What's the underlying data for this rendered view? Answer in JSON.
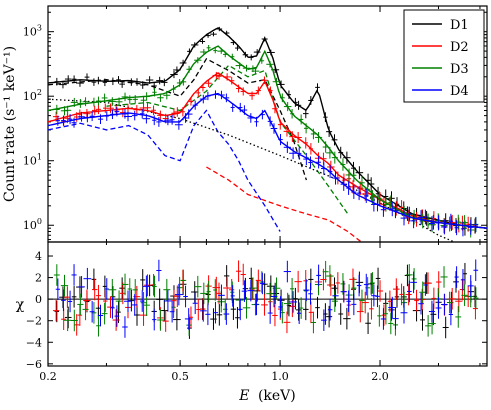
{
  "chart_data": {
    "type": "line",
    "xlabel_var": "E",
    "xlabel_unit": "(keV)",
    "ylabel_top": "Count rate (s⁻¹ keV⁻¹)",
    "ylabel_bottom": "χ",
    "x_scale": "log",
    "xlim": [
      0.2,
      4.2
    ],
    "x_ticks": [
      {
        "value": 0.2,
        "label": "0.2"
      },
      {
        "value": 0.5,
        "label": "0.5"
      },
      {
        "value": 1.0,
        "label": "1.0"
      },
      {
        "value": 2.0,
        "label": "2.0"
      }
    ],
    "top_panel": {
      "y_scale": "log",
      "ylim": [
        0.55,
        2500
      ],
      "y_ticks": [
        {
          "value": 1,
          "label_base": "10",
          "label_exp": "0"
        },
        {
          "value": 10,
          "label_base": "10",
          "label_exp": "1"
        },
        {
          "value": 100,
          "label_base": "10",
          "label_exp": "2"
        },
        {
          "value": 1000,
          "label_base": "10",
          "label_exp": "3"
        }
      ]
    },
    "bottom_panel": {
      "ylim": [
        -6.2,
        5.3
      ],
      "y_ticks": [
        {
          "value": 4,
          "label": "4"
        },
        {
          "value": 2,
          "label": "2"
        },
        {
          "value": 0,
          "label": "0"
        },
        {
          "value": -2,
          "label": "−2"
        },
        {
          "value": -4,
          "label": "−4"
        },
        {
          "value": -6,
          "label": "−6"
        }
      ]
    },
    "x": [
      0.2,
      0.25,
      0.3,
      0.35,
      0.4,
      0.45,
      0.5,
      0.55,
      0.6,
      0.65,
      0.7,
      0.75,
      0.8,
      0.85,
      0.9,
      0.95,
      1.0,
      1.1,
      1.2,
      1.3,
      1.4,
      1.5,
      1.7,
      2.0,
      2.5,
      3.0,
      3.5,
      4.2
    ],
    "series": [
      {
        "name": "D1",
        "color": "#000000",
        "values": [
          160,
          180,
          170,
          175,
          160,
          170,
          260,
          600,
          900,
          1150,
          850,
          600,
          400,
          420,
          800,
          400,
          150,
          80,
          60,
          130,
          30,
          15,
          7,
          3,
          1.5,
          1.2,
          1.0,
          0.9
        ]
      },
      {
        "name": "D2",
        "color": "#ff0000",
        "values": [
          40,
          55,
          60,
          65,
          60,
          50,
          55,
          110,
          170,
          230,
          180,
          140,
          110,
          110,
          170,
          90,
          40,
          25,
          18,
          12,
          9,
          6,
          4,
          2.5,
          1.4,
          1.1,
          1.0,
          0.9
        ]
      },
      {
        "name": "D3",
        "color": "#008000",
        "values": [
          60,
          75,
          85,
          95,
          100,
          110,
          150,
          320,
          480,
          600,
          430,
          330,
          260,
          280,
          500,
          260,
          100,
          50,
          35,
          25,
          16,
          10,
          5,
          2.5,
          1.3,
          1.1,
          1.0,
          0.9
        ]
      },
      {
        "name": "D4",
        "color": "#0000ff",
        "values": [
          35,
          45,
          50,
          55,
          50,
          40,
          40,
          70,
          100,
          110,
          85,
          65,
          50,
          45,
          60,
          35,
          20,
          14,
          11,
          9,
          7,
          5,
          3,
          2,
          1.3,
          1.1,
          1.0,
          0.9
        ]
      }
    ],
    "dashed_model_components": [
      {
        "color": "#000000",
        "x": [
          0.2,
          0.3,
          0.4,
          0.5,
          0.55,
          0.6,
          0.7,
          0.8,
          0.9,
          1.0,
          1.1,
          1.2
        ],
        "values": [
          150,
          180,
          150,
          100,
          180,
          380,
          250,
          160,
          180,
          60,
          20,
          5
        ]
      },
      {
        "color": "#ff0000",
        "x": [
          0.6,
          0.7,
          0.8,
          1.0,
          1.2,
          1.4,
          1.6,
          1.8
        ],
        "values": [
          8,
          5,
          3,
          2,
          1.5,
          1.2,
          0.8,
          0.5
        ]
      },
      {
        "color": "#008000",
        "x": [
          0.3,
          0.4,
          0.5,
          0.6,
          0.7,
          0.8,
          0.9,
          1.0,
          1.2,
          1.4,
          1.6
        ],
        "values": [
          70,
          80,
          60,
          120,
          300,
          200,
          250,
          40,
          12,
          4,
          1.5
        ]
      },
      {
        "color": "#0000ff",
        "x": [
          0.2,
          0.25,
          0.3,
          0.35,
          0.4,
          0.45,
          0.5,
          0.55,
          0.6,
          0.65,
          0.7,
          0.75,
          0.8,
          0.9,
          1.0
        ],
        "values": [
          30,
          38,
          30,
          35,
          25,
          12,
          10,
          35,
          60,
          28,
          18,
          10,
          5,
          2,
          0.8
        ]
      }
    ],
    "dotted_model_component": {
      "color": "#000000",
      "x": [
        0.2,
        0.3,
        0.5,
        0.7,
        1.0,
        1.5,
        2.0,
        2.5,
        3.0,
        3.5
      ],
      "values": [
        90,
        80,
        45,
        25,
        12,
        5,
        2.2,
        1.2,
        0.7,
        0.5
      ]
    },
    "legend": {
      "placement": "top-right",
      "entries": [
        "D1",
        "D2",
        "D3",
        "D4"
      ]
    },
    "grid": false
  }
}
